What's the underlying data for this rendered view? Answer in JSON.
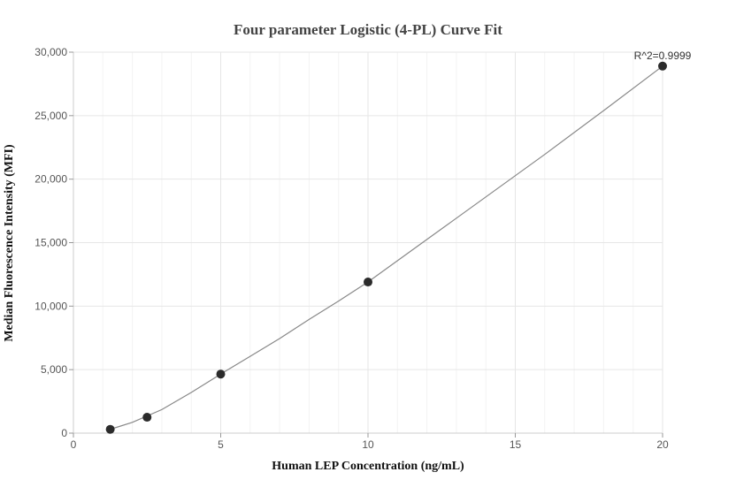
{
  "chart_data": {
    "type": "scatter",
    "title": "Four parameter Logistic (4-PL) Curve Fit",
    "xlabel": "Human LEP Concentration (ng/mL)",
    "ylabel": "Median Fluorescence Intensity (MFI)",
    "xlim": [
      0,
      20
    ],
    "ylim": [
      0,
      30000
    ],
    "x_ticks": [
      0,
      5,
      10,
      15,
      20
    ],
    "x_tick_labels": [
      "0",
      "5",
      "10",
      "15",
      "20"
    ],
    "y_ticks": [
      0,
      5000,
      10000,
      15000,
      20000,
      25000,
      30000
    ],
    "y_tick_labels": [
      "0",
      "5,000",
      "10,000",
      "15,000",
      "20,000",
      "25,000",
      "30,000"
    ],
    "grid": true,
    "series": [
      {
        "points": [
          {
            "x": 1.25,
            "y": 300
          },
          {
            "x": 2.5,
            "y": 1250
          },
          {
            "x": 5,
            "y": 4650
          },
          {
            "x": 10,
            "y": 11900
          },
          {
            "x": 20,
            "y": 28900
          }
        ]
      }
    ],
    "fit_curve": {
      "x": [
        1.25,
        2,
        3,
        4,
        5,
        6,
        7,
        8,
        9,
        10,
        12,
        14,
        16,
        18,
        20
      ],
      "y": [
        300,
        850,
        1850,
        3200,
        4650,
        6050,
        7450,
        8950,
        10400,
        11900,
        15250,
        18600,
        21950,
        25400,
        28900
      ]
    },
    "annotation": "R^2=0.9999"
  }
}
